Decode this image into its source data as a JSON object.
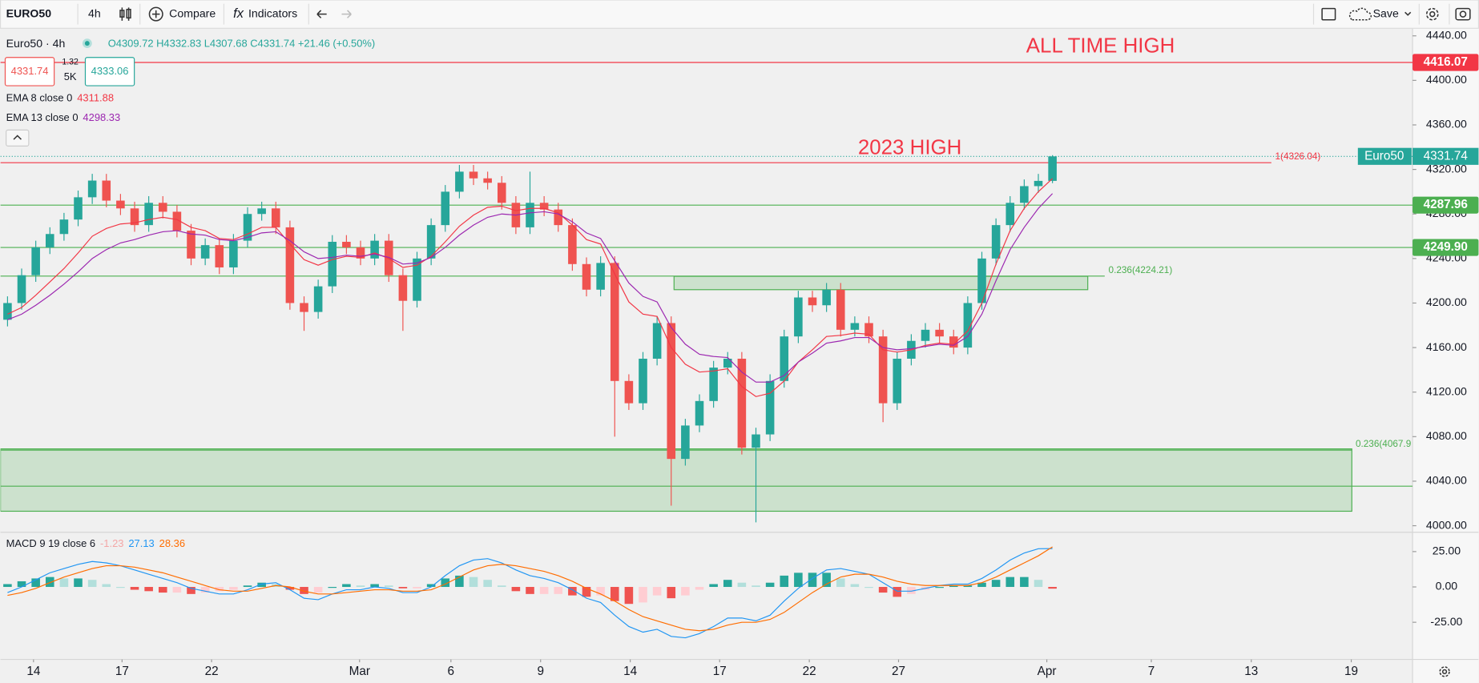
{
  "toolbar": {
    "symbol": "EURO50",
    "interval": "4h",
    "compare": "Compare",
    "indicators": "Indicators",
    "save": "Save"
  },
  "legend": {
    "title": "Euro50 · 4h",
    "open": "O4309.72",
    "high": "H4332.83",
    "low": "L4307.68",
    "close": "C4331.74",
    "change": "+21.46 (+0.50%)",
    "bid": "4331.74",
    "spread": "1.32",
    "volume": "5K",
    "ask": "4333.06",
    "ema8_value": "4311.88",
    "ema13_value": "4298.33",
    "macd": "MACD 9 19 close 6",
    "macd_hist": "-1.23",
    "macd_line": "27.13",
    "macd_signal": "28.36"
  },
  "chart_data": [
    {
      "type": "candlestick",
      "tag_name": "Euro50",
      "up_color": "#26a69a",
      "down_color": "#ef5350",
      "open": [
        4185,
        4200,
        4225,
        4250,
        4262,
        4275,
        4295,
        4310,
        4292,
        4285,
        4270,
        4290,
        4282,
        4265,
        4240,
        4252,
        4232,
        4256,
        4280,
        4285,
        4268,
        4200,
        4192,
        4215,
        4255,
        4250,
        4240,
        4256,
        4225,
        4202,
        4240,
        4270,
        4300,
        4318,
        4312,
        4308,
        4290,
        4268,
        4290,
        4284,
        4270,
        4235,
        4212,
        4236,
        4130,
        4110,
        4150,
        4182,
        4060,
        4090,
        4112,
        4142,
        4150,
        4070,
        4082,
        4130,
        4170,
        4205,
        4198,
        4212,
        4176,
        4182,
        4170,
        4110,
        4150,
        4166,
        4176,
        4170,
        4160,
        4200,
        4240,
        4270,
        4290,
        4305,
        4309.72
      ],
      "high": [
        4206,
        4231,
        4256,
        4268,
        4281,
        4301,
        4316,
        4316,
        4298,
        4291,
        4296,
        4296,
        4288,
        4271,
        4258,
        4258,
        4262,
        4286,
        4291,
        4291,
        4274,
        4206,
        4221,
        4261,
        4261,
        4256,
        4262,
        4262,
        4231,
        4246,
        4276,
        4306,
        4324,
        4324,
        4318,
        4314,
        4296,
        4318,
        4296,
        4290,
        4276,
        4241,
        4242,
        4242,
        4136,
        4156,
        4188,
        4188,
        4096,
        4118,
        4148,
        4156,
        4156,
        4088,
        4136,
        4176,
        4211,
        4211,
        4218,
        4218,
        4188,
        4188,
        4176,
        4156,
        4172,
        4182,
        4182,
        4176,
        4206,
        4246,
        4276,
        4296,
        4311,
        4316,
        4332.83
      ],
      "low": [
        4179,
        4194,
        4219,
        4244,
        4256,
        4269,
        4289,
        4286,
        4279,
        4264,
        4264,
        4276,
        4259,
        4234,
        4234,
        4226,
        4226,
        4250,
        4274,
        4262,
        4194,
        4175,
        4186,
        4209,
        4244,
        4234,
        4234,
        4219,
        4175,
        4196,
        4234,
        4264,
        4294,
        4306,
        4302,
        4284,
        4262,
        4262,
        4278,
        4264,
        4229,
        4206,
        4206,
        4080,
        4104,
        4104,
        4144,
        4018,
        4054,
        4084,
        4106,
        4136,
        4064,
        4003,
        4076,
        4124,
        4164,
        4192,
        4192,
        4170,
        4170,
        4164,
        4093,
        4104,
        4144,
        4160,
        4164,
        4154,
        4154,
        4194,
        4234,
        4264,
        4284,
        4299,
        4307.68
      ],
      "close": [
        4200,
        4225,
        4250,
        4262,
        4275,
        4295,
        4310,
        4292,
        4285,
        4270,
        4290,
        4282,
        4265,
        4240,
        4252,
        4232,
        4256,
        4280,
        4285,
        4268,
        4200,
        4192,
        4215,
        4255,
        4250,
        4240,
        4256,
        4225,
        4202,
        4240,
        4270,
        4300,
        4318,
        4312,
        4308,
        4290,
        4268,
        4290,
        4284,
        4270,
        4235,
        4212,
        4236,
        4130,
        4110,
        4150,
        4182,
        4060,
        4090,
        4112,
        4142,
        4150,
        4070,
        4082,
        4130,
        4170,
        4205,
        4198,
        4212,
        4176,
        4182,
        4170,
        4110,
        4150,
        4166,
        4176,
        4170,
        4160,
        4200,
        4240,
        4270,
        4290,
        4305,
        4309.72,
        4331.74
      ],
      "series": [
        {
          "name": "EMA 8 close 0",
          "color": "#f23645",
          "values": [
            4190,
            4196,
            4207,
            4219,
            4231,
            4245,
            4260,
            4267,
            4271,
            4272,
            4275,
            4277,
            4275,
            4268,
            4265,
            4258,
            4257,
            4262,
            4268,
            4268,
            4253,
            4239,
            4234,
            4239,
            4242,
            4241,
            4245,
            4240,
            4232,
            4234,
            4242,
            4255,
            4269,
            4279,
            4286,
            4287,
            4283,
            4285,
            4285,
            4281,
            4270,
            4257,
            4253,
            4226,
            4201,
            4190,
            4188,
            4160,
            4145,
            4138,
            4139,
            4141,
            4125,
            4116,
            4119,
            4130,
            4147,
            4158,
            4170,
            4171,
            4173,
            4172,
            4158,
            4156,
            4158,
            4162,
            4164,
            4163,
            4175,
            4200,
            4235,
            4265,
            4285,
            4300,
            4311.88
          ]
        },
        {
          "name": "EMA 13 close 0",
          "color": "#9c27b0",
          "values": [
            4185,
            4190,
            4198,
            4207,
            4217,
            4228,
            4240,
            4248,
            4254,
            4257,
            4261,
            4264,
            4265,
            4262,
            4261,
            4257,
            4256,
            4259,
            4263,
            4264,
            4256,
            4246,
            4240,
            4241,
            4243,
            4242,
            4244,
            4241,
            4235,
            4236,
            4241,
            4250,
            4261,
            4270,
            4277,
            4280,
            4279,
            4281,
            4282,
            4280,
            4273,
            4263,
            4258,
            4238,
            4218,
            4206,
            4201,
            4178,
            4163,
            4154,
            4152,
            4151,
            4138,
            4129,
            4129,
            4135,
            4147,
            4155,
            4164,
            4166,
            4169,
            4169,
            4160,
            4158,
            4159,
            4161,
            4163,
            4162,
            4170,
            4190,
            4220,
            4248,
            4268,
            4285,
            4298.33
          ]
        }
      ],
      "xlim": [
        -0.5,
        99.5
      ],
      "xticks": [
        {
          "value": 1.84,
          "label": "14"
        },
        {
          "value": 8.11,
          "label": "17"
        },
        {
          "value": 14.45,
          "label": "22"
        },
        {
          "value": 24.93,
          "label": "Mar"
        },
        {
          "value": 31.4,
          "label": "6"
        },
        {
          "value": 37.75,
          "label": "9"
        },
        {
          "value": 44.1,
          "label": "14"
        },
        {
          "value": 50.43,
          "label": "17"
        },
        {
          "value": 56.78,
          "label": "22"
        },
        {
          "value": 63.1,
          "label": "27"
        },
        {
          "value": 73.6,
          "label": "Apr"
        },
        {
          "value": 81.0,
          "label": "7"
        },
        {
          "value": 88.08,
          "label": "13"
        },
        {
          "value": 95.16,
          "label": "19"
        }
      ],
      "ylim": [
        3995.8,
        4446.8
      ],
      "yticks": [
        {
          "value": 4000,
          "label": "4000.00"
        },
        {
          "value": 4040,
          "label": "4040.00"
        },
        {
          "value": 4080,
          "label": "4080.00"
        },
        {
          "value": 4120,
          "label": "4120.00"
        },
        {
          "value": 4160,
          "label": "4160.00"
        },
        {
          "value": 4200,
          "label": "4200.00"
        },
        {
          "value": 4240,
          "label": "4240.00"
        },
        {
          "value": 4280,
          "label": "4280.00"
        },
        {
          "value": 4320,
          "label": "4320.00"
        },
        {
          "value": 4360,
          "label": "4360.00"
        },
        {
          "value": 4400,
          "label": "4400.00"
        },
        {
          "value": 4440,
          "label": "4440.00"
        }
      ],
      "price_lines": [
        {
          "value": 4416.07,
          "label": "4416.07",
          "color": "#f23645"
        },
        {
          "value": 4287.96,
          "label": "4287.96",
          "color": "#4caf50"
        },
        {
          "value": 4249.9,
          "label": "4249.90",
          "color": "#4caf50"
        }
      ],
      "trend_lines": [
        {
          "value": 4326.04,
          "label": "1(4326.04)",
          "color": "#f23645",
          "x_end": 89.5
        },
        {
          "value": 4224.21,
          "label": "0.236(4224.21)",
          "color": "#4caf50",
          "x_end": 77.7
        },
        {
          "value": 4067.9,
          "label": "0.236(4067.9",
          "color": "#4caf50",
          "x_end": 95.2
        },
        {
          "value": 4035.5,
          "color": "#4caf50",
          "x_end": 99.5
        }
      ],
      "zones": [
        {
          "x": [
            47.2,
            76.5
          ],
          "y": [
            4212,
            4224
          ],
          "color": "#4caf50"
        },
        {
          "x": [
            -0.5,
            95.2
          ],
          "y": [
            4013,
            4069
          ],
          "color": "#4caf50"
        }
      ],
      "annotations": [
        {
          "text": "ALL TIME HIGH",
          "x": 77.4,
          "y": 4429.9,
          "color": "#f23645"
        },
        {
          "text": "2023 HIGH",
          "x": 63.9,
          "y": 4338.5,
          "color": "#f23645"
        }
      ]
    },
    {
      "type": "macd",
      "histogram": [
        2,
        4,
        6,
        7,
        6,
        6,
        5,
        2,
        0,
        -2,
        -3,
        -4,
        -4,
        -5,
        -4,
        -3,
        -2,
        1,
        3,
        2,
        -2,
        -5,
        -4,
        0,
        2,
        1,
        2,
        1,
        -1,
        -1,
        2,
        6,
        8,
        7,
        5,
        1,
        -3,
        -5,
        -5,
        -5,
        -6,
        -7,
        -6,
        -10,
        -12,
        -11,
        -6,
        -8,
        -6,
        -2,
        2,
        5,
        3,
        1,
        3,
        8,
        10,
        10,
        10,
        6,
        2,
        0,
        -4,
        -7,
        -5,
        -2,
        0,
        1,
        1,
        3,
        5,
        7,
        7,
        5,
        -1.23
      ],
      "histogram_colors": {
        "up_rising": "#26a69a",
        "up_falling": "#b2dfdb",
        "down_falling": "#ef5350",
        "down_rising": "#ffcdd2"
      },
      "series": [
        {
          "color": "#2196f3",
          "values": [
            -4,
            0,
            5,
            10,
            13,
            16,
            18,
            17,
            15,
            12,
            9,
            6,
            3,
            -1,
            -3,
            -5,
            -5,
            -2,
            2,
            3,
            -2,
            -8,
            -9,
            -5,
            -2,
            -2,
            0,
            -1,
            -4,
            -4,
            0,
            8,
            15,
            19,
            20,
            17,
            12,
            8,
            6,
            3,
            -2,
            -8,
            -11,
            -20,
            -28,
            -32,
            -30,
            -35,
            -36,
            -33,
            -28,
            -22,
            -22,
            -24,
            -20,
            -10,
            -1,
            6,
            12,
            13,
            11,
            9,
            3,
            -3,
            -3,
            -1,
            1,
            2,
            2,
            6,
            12,
            19,
            24,
            27,
            27.13
          ]
        },
        {
          "color": "#ff6d00",
          "values": [
            -6,
            -4,
            -1,
            3,
            7,
            10,
            13,
            15,
            15,
            14,
            12,
            10,
            7,
            4,
            1,
            -2,
            -3,
            -3,
            -1,
            1,
            0,
            -3,
            -5,
            -5,
            -4,
            -3,
            -2,
            -2,
            -3,
            -3,
            -2,
            2,
            7,
            12,
            15,
            16,
            15,
            13,
            11,
            8,
            4,
            -1,
            -5,
            -10,
            -16,
            -21,
            -24,
            -27,
            -30,
            -31,
            -30,
            -27,
            -25,
            -25,
            -23,
            -18,
            -11,
            -4,
            2,
            7,
            9,
            9,
            7,
            4,
            2,
            1,
            1,
            1,
            1,
            3,
            7,
            12,
            17,
            22,
            28.36
          ]
        }
      ],
      "ylim": [
        -51.3,
        38
      ],
      "yticks": [
        {
          "value": -25,
          "label": "-25.00"
        },
        {
          "value": 0,
          "label": "0.00"
        },
        {
          "value": 25,
          "label": "25.00"
        }
      ]
    }
  ]
}
